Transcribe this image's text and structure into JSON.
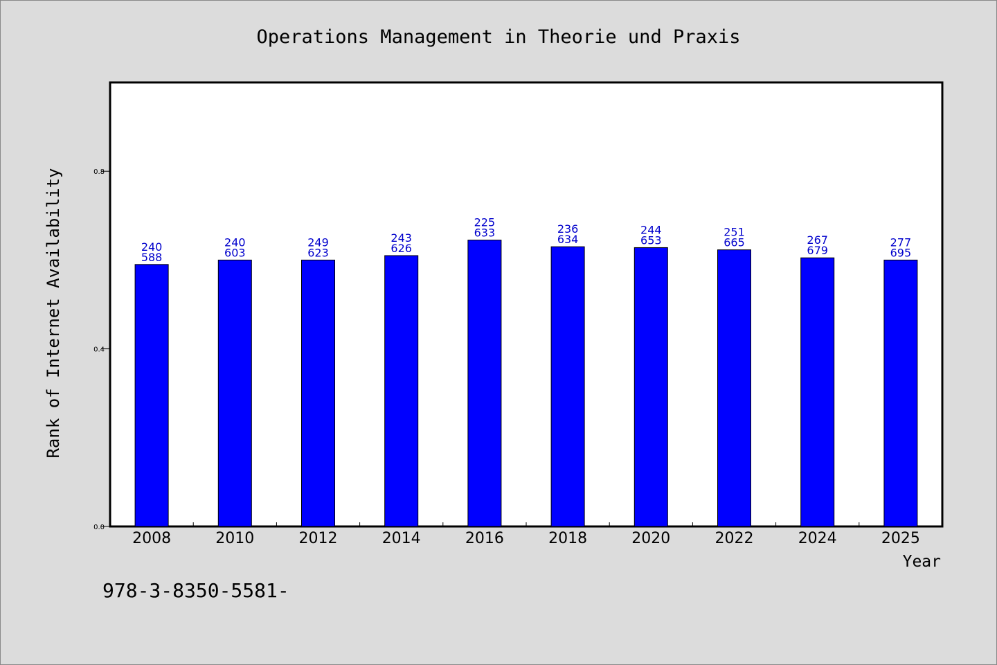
{
  "chart_data": {
    "type": "bar",
    "title": "Operations Management in Theorie und Praxis",
    "xlabel": "Year",
    "ylabel": "Rank of Internet Availability",
    "categories": [
      "2008",
      "2010",
      "2012",
      "2014",
      "2016",
      "2018",
      "2020",
      "2022",
      "2024",
      "2025"
    ],
    "values": [
      0.59,
      0.6,
      0.6,
      0.61,
      0.645,
      0.63,
      0.628,
      0.623,
      0.605,
      0.6
    ],
    "bar_labels_top": [
      "240",
      "240",
      "249",
      "243",
      "225",
      "236",
      "244",
      "251",
      "267",
      "277"
    ],
    "bar_labels_bottom": [
      "588",
      "603",
      "623",
      "626",
      "633",
      "634",
      "653",
      "665",
      "679",
      "695"
    ],
    "ylim": [
      0,
      1.0
    ],
    "yticks": [
      0.0,
      0.4,
      0.8
    ],
    "ytick_labels": [
      "0.0",
      "0.4",
      "0.8"
    ],
    "grid": false,
    "colors": {
      "bar": "#0000ff",
      "label": "#0000cc",
      "background": "#dcdcdc",
      "plot_background": "#ffffff"
    }
  },
  "footer_text": "978-3-8350-5581-"
}
